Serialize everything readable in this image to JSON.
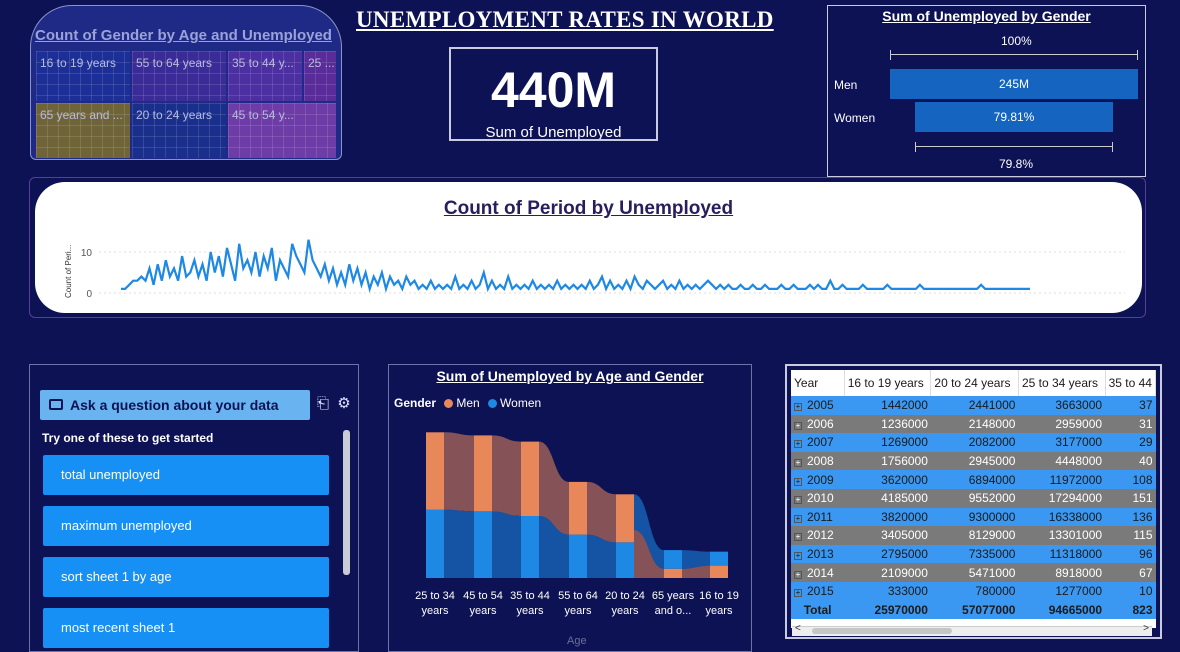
{
  "header": {
    "title": "UNEMPLOYMENT RATES IN WORLD"
  },
  "treemap": {
    "title": "Count of Gender by Age and Unemployed",
    "tiles": [
      {
        "label": "16 to 19 years",
        "color": "#1c2f96"
      },
      {
        "label": "55 to 64 years",
        "color": "#3a2b96"
      },
      {
        "label": "35 to 44 y...",
        "color": "#4c2fa0"
      },
      {
        "label": "25 ...",
        "color": "#5a2c9a"
      },
      {
        "label": "65 years and ...",
        "color": "#6f6338"
      },
      {
        "label": "20 to 24 years",
        "color": "#1a2f8c"
      },
      {
        "label": "45 to 54 y...",
        "color": "#6d3ca6"
      }
    ]
  },
  "kpi": {
    "value": "440M",
    "label": "Sum of Unemployed"
  },
  "gender_funnel": {
    "title": "Sum of Unemployed by Gender",
    "top_label": "100%",
    "bottom_label": "79.8%",
    "bars": [
      {
        "label": "Men",
        "value_text": "245M",
        "share": 1.0
      },
      {
        "label": "Women",
        "value_text": "79.81%",
        "share": 0.7981
      }
    ]
  },
  "period_chart": {
    "title": "Count of Period by Unemployed",
    "ylabel": "Count of Peri...",
    "yticks": [
      "10",
      "0"
    ],
    "color": "#1e88e5",
    "ylim": [
      0,
      13
    ],
    "points": [
      1,
      1,
      2,
      3,
      3,
      4,
      3,
      6,
      2,
      7,
      3,
      8,
      4,
      6,
      3,
      9,
      4,
      5,
      8,
      4,
      7,
      3,
      10,
      5,
      9,
      4,
      11,
      7,
      3,
      12,
      6,
      8,
      5,
      10,
      4,
      9,
      6,
      11,
      3,
      8,
      6,
      4,
      12,
      9,
      7,
      5,
      13,
      8,
      6,
      4,
      7,
      3,
      6,
      2,
      5,
      2,
      7,
      3,
      6,
      2,
      5,
      1,
      4,
      2,
      5,
      1,
      4,
      2,
      3,
      1,
      4,
      2,
      3,
      1,
      2,
      1,
      3,
      1,
      2,
      1,
      2,
      1,
      4,
      1,
      2,
      1,
      3,
      1,
      2,
      5,
      1,
      3,
      1,
      2,
      1,
      4,
      1,
      2,
      1,
      2,
      1,
      3,
      1,
      2,
      1,
      2,
      1,
      3,
      1,
      2,
      1,
      2,
      1,
      2,
      1,
      3,
      1,
      2,
      4,
      1,
      3,
      1,
      2,
      1,
      3,
      1,
      4,
      2,
      1,
      3,
      2,
      1,
      2,
      3,
      1,
      2,
      1,
      3,
      1,
      2,
      1,
      2,
      1,
      2,
      3,
      2,
      1,
      2,
      1,
      2,
      1,
      1,
      2,
      1,
      1,
      2,
      1,
      1,
      2,
      1,
      1,
      1,
      2,
      1,
      1,
      2,
      1,
      1,
      1,
      2,
      1,
      2,
      1,
      1,
      3,
      1,
      1,
      2,
      1,
      1,
      1,
      1,
      2,
      1,
      1,
      1,
      1,
      1,
      2,
      1,
      1,
      1,
      1,
      1,
      1,
      1,
      2,
      1,
      1,
      1,
      1,
      1,
      1,
      1,
      1,
      1,
      1,
      1,
      1,
      1,
      1,
      2,
      1,
      1,
      1,
      1,
      1,
      1,
      1,
      1,
      1,
      1,
      1,
      1
    ]
  },
  "qa": {
    "ask_label": "Ask a question about your data",
    "icons": [
      "share-icon",
      "gear-icon"
    ],
    "hint": "Try one of these to get started",
    "suggestions": [
      "total unemployed",
      "maximum unemployed",
      "sort sheet 1 by age",
      "most recent sheet 1"
    ]
  },
  "ribbon": {
    "title": "Sum of Unemployed by Age and Gender",
    "legend_title": "Gender",
    "xlabel": "Age",
    "series": [
      {
        "name": "Men",
        "color": "#e8875a"
      },
      {
        "name": "Women",
        "color": "#1e88e5"
      }
    ]
  },
  "chart_data": {
    "type": "bar",
    "title": "Sum of Unemployed by Age and Gender",
    "xlabel": "Age",
    "categories": [
      "25 to 34 years",
      "45 to 54 years",
      "35 to 44 years",
      "55 to 64 years",
      "20 to 24 years",
      "65 years and o...",
      "16 to 19 years"
    ],
    "series": [
      {
        "name": "Women",
        "values": [
          44,
          43,
          40,
          28,
          23,
          12,
          9
        ]
      },
      {
        "name": "Men",
        "values": [
          50,
          49,
          48,
          34,
          31,
          6,
          8
        ]
      }
    ],
    "ylim": [
      0,
      100
    ],
    "legend": "top-left",
    "grid": false
  },
  "table": {
    "columns": [
      "Year",
      "16 to 19 years",
      "20 to 24 years",
      "25 to 34 years",
      "35 to 44"
    ],
    "rows": [
      [
        "2005",
        "1442000",
        "2441000",
        "3663000",
        "37"
      ],
      [
        "2006",
        "1236000",
        "2148000",
        "2959000",
        "31"
      ],
      [
        "2007",
        "1269000",
        "2082000",
        "3177000",
        "29"
      ],
      [
        "2008",
        "1756000",
        "2945000",
        "4448000",
        "40"
      ],
      [
        "2009",
        "3620000",
        "6894000",
        "11972000",
        "108"
      ],
      [
        "2010",
        "4185000",
        "9552000",
        "17294000",
        "151"
      ],
      [
        "2011",
        "3820000",
        "9300000",
        "16338000",
        "136"
      ],
      [
        "2012",
        "3405000",
        "8129000",
        "13301000",
        "115"
      ],
      [
        "2013",
        "2795000",
        "7335000",
        "11318000",
        "96"
      ],
      [
        "2014",
        "2109000",
        "5471000",
        "8918000",
        "67"
      ],
      [
        "2015",
        "333000",
        "780000",
        "1277000",
        "10"
      ]
    ],
    "total": [
      "Total",
      "25970000",
      "57077000",
      "94665000",
      "823"
    ]
  }
}
